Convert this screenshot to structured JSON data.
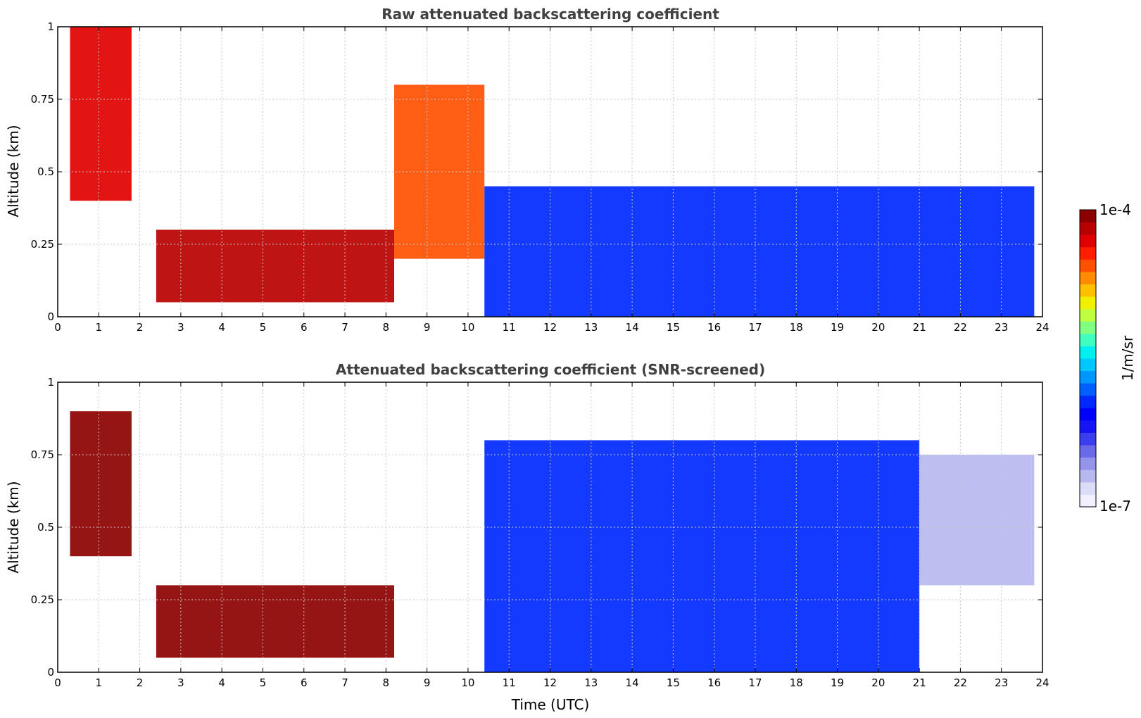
{
  "colorbar": {
    "label": "1/m/sr",
    "top_label": "1e-4",
    "bottom_label": "1e-7",
    "range": [
      1e-07,
      0.0001
    ],
    "scale": "log",
    "colors": [
      "#f0f0ff",
      "#dcdcf8",
      "#b8b8f0",
      "#9494ec",
      "#6a6ae8",
      "#3c3cf0",
      "#1414f5",
      "#0000ff",
      "#0028ff",
      "#0060ff",
      "#0096ff",
      "#00c8ff",
      "#00f0f0",
      "#40ffc0",
      "#80ff80",
      "#c0ff40",
      "#f0f000",
      "#ffc000",
      "#ff8c00",
      "#ff5000",
      "#ff1e00",
      "#e00000",
      "#b80000",
      "#8c0000"
    ]
  },
  "chart_data": [
    {
      "type": "heatmap",
      "title": "Raw attenuated backscattering coefficient",
      "xlabel": "",
      "ylabel": "Altitude (km)",
      "xlim": [
        0,
        24
      ],
      "ylim": [
        0,
        1
      ],
      "xticks": [
        "0",
        "1",
        "2",
        "3",
        "4",
        "5",
        "6",
        "7",
        "8",
        "9",
        "10",
        "11",
        "12",
        "13",
        "14",
        "15",
        "16",
        "17",
        "18",
        "19",
        "20",
        "21",
        "22",
        "23",
        "24"
      ],
      "yticks": [
        "0",
        "0.25",
        "0.5",
        "0.75",
        "1"
      ],
      "grid": true,
      "units": "1/m/sr",
      "approx_layers": [
        {
          "time_range": [
            0.3,
            1.8
          ],
          "altitude_range": [
            0.4,
            1.0
          ],
          "value": 5e-05
        },
        {
          "time_range": [
            2.4,
            8.2
          ],
          "altitude_range": [
            0.05,
            0.3
          ],
          "value": 8e-05
        },
        {
          "time_range": [
            8.2,
            10.4
          ],
          "altitude_range": [
            0.2,
            0.8
          ],
          "value": 3e-05
        },
        {
          "time_range": [
            10.4,
            23.8
          ],
          "altitude_range": [
            0.0,
            0.45
          ],
          "value": 1e-06
        }
      ]
    },
    {
      "type": "heatmap",
      "title": "Attenuated backscattering coefficient (SNR-screened)",
      "xlabel": "Time (UTC)",
      "ylabel": "Altitude (km)",
      "xlim": [
        0,
        24
      ],
      "ylim": [
        0,
        1
      ],
      "xticks": [
        "0",
        "1",
        "2",
        "3",
        "4",
        "5",
        "6",
        "7",
        "8",
        "9",
        "10",
        "11",
        "12",
        "13",
        "14",
        "15",
        "16",
        "17",
        "18",
        "19",
        "20",
        "21",
        "22",
        "23",
        "24"
      ],
      "yticks": [
        "0",
        "0.25",
        "0.5",
        "0.75",
        "1"
      ],
      "grid": true,
      "units": "1/m/sr",
      "approx_layers": [
        {
          "time_range": [
            0.3,
            1.8
          ],
          "altitude_range": [
            0.4,
            0.9
          ],
          "value": 9e-05
        },
        {
          "time_range": [
            2.4,
            8.2
          ],
          "altitude_range": [
            0.05,
            0.3
          ],
          "value": 0.0001
        },
        {
          "time_range": [
            10.4,
            21.0
          ],
          "altitude_range": [
            0.0,
            0.8
          ],
          "value": 1e-06
        },
        {
          "time_range": [
            21.0,
            23.8
          ],
          "altitude_range": [
            0.3,
            0.75
          ],
          "value": 2e-07
        }
      ]
    }
  ]
}
